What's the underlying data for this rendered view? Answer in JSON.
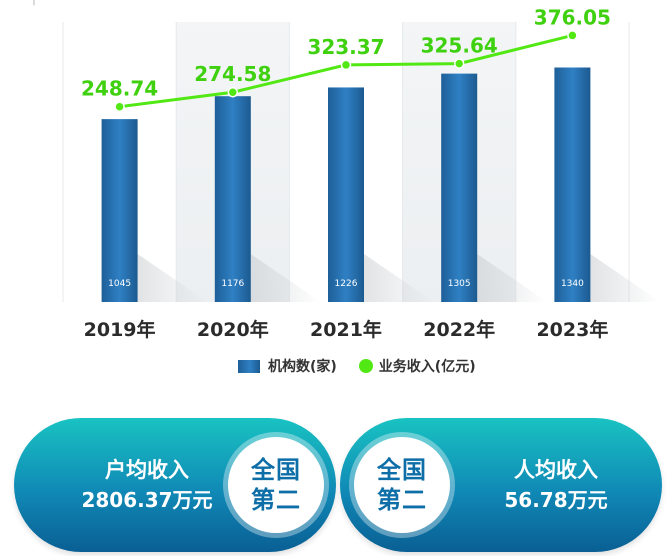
{
  "chart_data": {
    "type": "bar",
    "categories": [
      "2019年",
      "2020年",
      "2021年",
      "2022年",
      "2023年"
    ],
    "series": [
      {
        "name": "机构数(家)",
        "type": "bar",
        "values": [
          1045,
          1176,
          1226,
          1305,
          1340
        ]
      },
      {
        "name": "业务收入(亿元)",
        "type": "line",
        "values": [
          248.74,
          274.58,
          323.37,
          325.64,
          376.05
        ]
      }
    ],
    "bar_ylim": [
      0,
      1600
    ],
    "line_ylim": [
      -100,
      400
    ],
    "grid": false,
    "legend_position": "bottom-center",
    "colors": {
      "bar": "#2472b3",
      "line": "#52e813",
      "label": "#3fd10f"
    }
  },
  "legend": {
    "bar_label": "机构数(家)",
    "line_label": "业务收入(亿元)"
  },
  "stray_mark": "┌ ˙",
  "cards": [
    {
      "title": "户均收入",
      "value": "2806.37万元",
      "badge_top": "全国",
      "badge_bottom": "第二"
    },
    {
      "title": "人均收入",
      "value": "56.78万元",
      "badge_top": "全国",
      "badge_bottom": "第二"
    }
  ]
}
